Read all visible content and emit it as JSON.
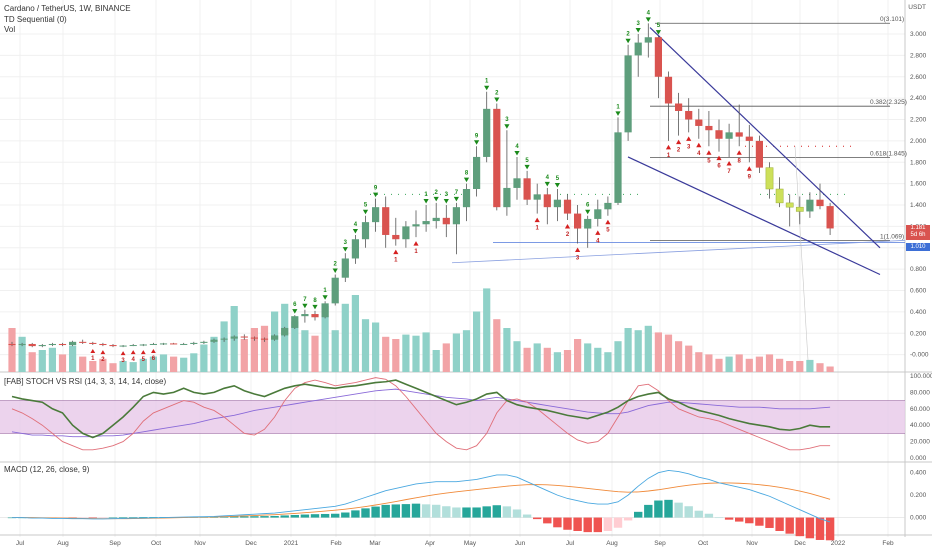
{
  "header": {
    "symbol_line": "Cardano / TetherUS, 1W, BINANCE",
    "indicator1": "TD Sequential (0)",
    "indicator2": "Vol",
    "currency": "USDT"
  },
  "panels": {
    "stoch_label": "[FAB] STOCH VS RSI (14, 3, 3, 14, 14, close)",
    "macd_label": "MACD (12, 26, close, 9)"
  },
  "price_badges": {
    "last": "1.181",
    "countdown": "5d 6h",
    "support": "1.010"
  },
  "colors": {
    "up": "#5e9e7c",
    "down": "#d9534f",
    "yellow": "#cde05a",
    "wedge": "#3a3a9a",
    "badge_last": "#d9534f",
    "badge_support": "#3d6fd6",
    "stoch_fill": "#e7c8e9",
    "rsi_line": "#8a6ad8",
    "stoch_k": "#4a7a3a",
    "stoch_d": "#e0707a",
    "macd_line": "#4aa8e0",
    "signal_line": "#f08a3a",
    "buy_arrow": "#1a8a1a",
    "sell_arrow": "#d62020"
  },
  "chart_data": {
    "type": "candlestick",
    "title": "Cardano / TetherUS, 1W, BINANCE",
    "x_ticks": [
      "Jul",
      "Aug",
      "Sep",
      "Oct",
      "Nov",
      "Dec",
      "2021",
      "Feb",
      "Mar",
      "Apr",
      "May",
      "Jun",
      "Jul",
      "Aug",
      "Sep",
      "Oct",
      "Nov",
      "Dec",
      "2022",
      "Feb"
    ],
    "price_axis": {
      "ticks": [
        "3.000",
        "2.800",
        "2.600",
        "2.400",
        "2.200",
        "2.000",
        "1.800",
        "1.600",
        "1.400",
        "1.200",
        "1.000",
        "0.800",
        "0.600",
        "0.400",
        "0.200",
        "-0.000"
      ],
      "range": [
        -0.05,
        3.15
      ],
      "unit": "USDT"
    },
    "candles": [
      {
        "o": 0.1,
        "h": 0.12,
        "l": 0.08,
        "c": 0.09
      },
      {
        "o": 0.09,
        "h": 0.11,
        "l": 0.08,
        "c": 0.1
      },
      {
        "o": 0.1,
        "h": 0.11,
        "l": 0.07,
        "c": 0.08
      },
      {
        "o": 0.08,
        "h": 0.1,
        "l": 0.07,
        "c": 0.09
      },
      {
        "o": 0.09,
        "h": 0.11,
        "l": 0.08,
        "c": 0.1
      },
      {
        "o": 0.1,
        "h": 0.11,
        "l": 0.08,
        "c": 0.09
      },
      {
        "o": 0.09,
        "h": 0.13,
        "l": 0.08,
        "c": 0.12
      },
      {
        "o": 0.12,
        "h": 0.14,
        "l": 0.1,
        "c": 0.11
      },
      {
        "o": 0.11,
        "h": 0.12,
        "l": 0.09,
        "c": 0.1
      },
      {
        "o": 0.1,
        "h": 0.11,
        "l": 0.08,
        "c": 0.09
      },
      {
        "o": 0.09,
        "h": 0.1,
        "l": 0.07,
        "c": 0.08
      },
      {
        "o": 0.08,
        "h": 0.09,
        "l": 0.07,
        "c": 0.085
      },
      {
        "o": 0.085,
        "h": 0.1,
        "l": 0.08,
        "c": 0.09
      },
      {
        "o": 0.09,
        "h": 0.1,
        "l": 0.08,
        "c": 0.095
      },
      {
        "o": 0.095,
        "h": 0.11,
        "l": 0.09,
        "c": 0.1
      },
      {
        "o": 0.1,
        "h": 0.11,
        "l": 0.09,
        "c": 0.105
      },
      {
        "o": 0.105,
        "h": 0.11,
        "l": 0.095,
        "c": 0.1
      },
      {
        "o": 0.1,
        "h": 0.11,
        "l": 0.09,
        "c": 0.1
      },
      {
        "o": 0.1,
        "h": 0.12,
        "l": 0.09,
        "c": 0.11
      },
      {
        "o": 0.11,
        "h": 0.13,
        "l": 0.1,
        "c": 0.12
      },
      {
        "o": 0.12,
        "h": 0.15,
        "l": 0.11,
        "c": 0.14
      },
      {
        "o": 0.14,
        "h": 0.16,
        "l": 0.12,
        "c": 0.15
      },
      {
        "o": 0.15,
        "h": 0.18,
        "l": 0.13,
        "c": 0.17
      },
      {
        "o": 0.17,
        "h": 0.19,
        "l": 0.14,
        "c": 0.16
      },
      {
        "o": 0.16,
        "h": 0.17,
        "l": 0.13,
        "c": 0.15
      },
      {
        "o": 0.15,
        "h": 0.16,
        "l": 0.12,
        "c": 0.14
      },
      {
        "o": 0.14,
        "h": 0.19,
        "l": 0.13,
        "c": 0.18
      },
      {
        "o": 0.18,
        "h": 0.26,
        "l": 0.17,
        "c": 0.25
      },
      {
        "o": 0.25,
        "h": 0.37,
        "l": 0.24,
        "c": 0.36
      },
      {
        "o": 0.36,
        "h": 0.42,
        "l": 0.3,
        "c": 0.38
      },
      {
        "o": 0.38,
        "h": 0.41,
        "l": 0.32,
        "c": 0.35
      },
      {
        "o": 0.35,
        "h": 0.5,
        "l": 0.34,
        "c": 0.48
      },
      {
        "o": 0.48,
        "h": 0.75,
        "l": 0.46,
        "c": 0.72
      },
      {
        "o": 0.72,
        "h": 0.95,
        "l": 0.68,
        "c": 0.9
      },
      {
        "o": 0.9,
        "h": 1.12,
        "l": 0.85,
        "c": 1.08
      },
      {
        "o": 1.08,
        "h": 1.3,
        "l": 1.0,
        "c": 1.24
      },
      {
        "o": 1.24,
        "h": 1.46,
        "l": 1.15,
        "c": 1.38
      },
      {
        "o": 1.38,
        "h": 1.48,
        "l": 1.0,
        "c": 1.12
      },
      {
        "o": 1.12,
        "h": 1.28,
        "l": 1.02,
        "c": 1.08
      },
      {
        "o": 1.08,
        "h": 1.25,
        "l": 1.0,
        "c": 1.2
      },
      {
        "o": 1.2,
        "h": 1.35,
        "l": 1.1,
        "c": 1.22
      },
      {
        "o": 1.22,
        "h": 1.4,
        "l": 1.15,
        "c": 1.25
      },
      {
        "o": 1.25,
        "h": 1.42,
        "l": 1.18,
        "c": 1.28
      },
      {
        "o": 1.28,
        "h": 1.4,
        "l": 1.1,
        "c": 1.22
      },
      {
        "o": 1.22,
        "h": 1.42,
        "l": 0.94,
        "c": 1.38
      },
      {
        "o": 1.38,
        "h": 1.6,
        "l": 1.25,
        "c": 1.55
      },
      {
        "o": 1.55,
        "h": 1.95,
        "l": 1.48,
        "c": 1.85
      },
      {
        "o": 1.85,
        "h": 2.46,
        "l": 1.8,
        "c": 2.3
      },
      {
        "o": 2.3,
        "h": 2.35,
        "l": 1.35,
        "c": 1.38
      },
      {
        "o": 1.38,
        "h": 2.1,
        "l": 1.3,
        "c": 1.56
      },
      {
        "o": 1.56,
        "h": 1.85,
        "l": 1.45,
        "c": 1.65
      },
      {
        "o": 1.65,
        "h": 1.72,
        "l": 1.4,
        "c": 1.45
      },
      {
        "o": 1.45,
        "h": 1.6,
        "l": 1.32,
        "c": 1.5
      },
      {
        "o": 1.5,
        "h": 1.56,
        "l": 1.22,
        "c": 1.38
      },
      {
        "o": 1.38,
        "h": 1.55,
        "l": 1.25,
        "c": 1.45
      },
      {
        "o": 1.45,
        "h": 1.5,
        "l": 1.26,
        "c": 1.32
      },
      {
        "o": 1.32,
        "h": 1.4,
        "l": 1.04,
        "c": 1.18
      },
      {
        "o": 1.18,
        "h": 1.3,
        "l": 1.0,
        "c": 1.27
      },
      {
        "o": 1.27,
        "h": 1.45,
        "l": 1.2,
        "c": 1.36
      },
      {
        "o": 1.36,
        "h": 1.48,
        "l": 1.3,
        "c": 1.42
      },
      {
        "o": 1.42,
        "h": 2.22,
        "l": 1.4,
        "c": 2.08
      },
      {
        "o": 2.08,
        "h": 2.9,
        "l": 2.0,
        "c": 2.8
      },
      {
        "o": 2.8,
        "h": 3.0,
        "l": 2.6,
        "c": 2.92
      },
      {
        "o": 2.92,
        "h": 3.1,
        "l": 2.78,
        "c": 2.97
      },
      {
        "o": 2.97,
        "h": 2.98,
        "l": 2.4,
        "c": 2.6
      },
      {
        "o": 2.6,
        "h": 2.65,
        "l": 2.0,
        "c": 2.35
      },
      {
        "o": 2.35,
        "h": 2.45,
        "l": 2.05,
        "c": 2.28
      },
      {
        "o": 2.28,
        "h": 2.4,
        "l": 2.08,
        "c": 2.2
      },
      {
        "o": 2.2,
        "h": 2.3,
        "l": 2.02,
        "c": 2.14
      },
      {
        "o": 2.14,
        "h": 2.28,
        "l": 1.95,
        "c": 2.1
      },
      {
        "o": 2.1,
        "h": 2.2,
        "l": 1.9,
        "c": 2.02
      },
      {
        "o": 2.02,
        "h": 2.16,
        "l": 1.85,
        "c": 2.08
      },
      {
        "o": 2.08,
        "h": 2.34,
        "l": 1.95,
        "c": 2.04
      },
      {
        "o": 2.04,
        "h": 2.15,
        "l": 1.8,
        "c": 2.0
      },
      {
        "o": 2.0,
        "h": 2.05,
        "l": 1.7,
        "c": 1.75
      },
      {
        "o": 1.75,
        "h": 1.8,
        "l": 1.46,
        "c": 1.55
      },
      {
        "o": 1.55,
        "h": 1.66,
        "l": 1.38,
        "c": 1.42
      },
      {
        "o": 1.42,
        "h": 1.5,
        "l": 1.2,
        "c": 1.38
      },
      {
        "o": 1.38,
        "h": 1.48,
        "l": 1.22,
        "c": 1.34
      },
      {
        "o": 1.34,
        "h": 1.52,
        "l": 1.28,
        "c": 1.45
      },
      {
        "o": 1.45,
        "h": 1.6,
        "l": 1.36,
        "c": 1.39
      },
      {
        "o": 1.39,
        "h": 1.42,
        "l": 1.12,
        "c": 1.181
      }
    ],
    "yellow_candles": [
      75,
      76,
      77,
      78
    ],
    "volume": [
      0.4,
      0.32,
      0.18,
      0.2,
      0.22,
      0.16,
      0.24,
      0.14,
      0.1,
      0.12,
      0.08,
      0.1,
      0.09,
      0.12,
      0.14,
      0.16,
      0.14,
      0.13,
      0.17,
      0.25,
      0.32,
      0.46,
      0.6,
      0.3,
      0.4,
      0.42,
      0.55,
      0.62,
      0.46,
      0.38,
      0.33,
      0.6,
      0.38,
      0.62,
      0.7,
      0.48,
      0.45,
      0.32,
      0.3,
      0.34,
      0.33,
      0.36,
      0.2,
      0.26,
      0.35,
      0.38,
      0.55,
      0.76,
      0.48,
      0.4,
      0.28,
      0.22,
      0.26,
      0.22,
      0.18,
      0.2,
      0.3,
      0.26,
      0.22,
      0.18,
      0.28,
      0.4,
      0.38,
      0.42,
      0.36,
      0.34,
      0.28,
      0.24,
      0.18,
      0.16,
      0.12,
      0.14,
      0.16,
      0.12,
      0.14,
      0.16,
      0.12,
      0.1,
      0.1,
      0.11,
      0.08,
      0.05
    ],
    "td_labels": {
      "green_counts": [
        [
          31,
          "1"
        ],
        [
          32,
          "2"
        ],
        [
          33,
          "3"
        ],
        [
          34,
          "4"
        ],
        [
          35,
          "5"
        ],
        [
          44,
          "7"
        ],
        [
          45,
          "8"
        ],
        [
          46,
          "9"
        ],
        [
          47,
          "1"
        ],
        [
          48,
          "2"
        ],
        [
          49,
          "3"
        ],
        [
          50,
          "4"
        ],
        [
          51,
          "5"
        ],
        [
          41,
          "1"
        ],
        [
          42,
          "2"
        ],
        [
          43,
          "3"
        ],
        [
          53,
          "4"
        ],
        [
          54,
          "5"
        ],
        [
          57,
          "6"
        ],
        [
          60,
          "1"
        ],
        [
          61,
          "2"
        ],
        [
          62,
          "3"
        ],
        [
          63,
          "4"
        ],
        [
          64,
          "5"
        ],
        [
          28,
          "6"
        ],
        [
          29,
          "7"
        ],
        [
          30,
          "8"
        ],
        [
          36,
          "9"
        ]
      ],
      "red_counts": [
        [
          65,
          "1"
        ],
        [
          66,
          "2"
        ],
        [
          67,
          "3"
        ],
        [
          68,
          "4"
        ],
        [
          69,
          "5"
        ],
        [
          70,
          "6"
        ],
        [
          71,
          "7"
        ],
        [
          72,
          "8"
        ],
        [
          73,
          "9"
        ],
        [
          52,
          "1"
        ],
        [
          55,
          "2"
        ],
        [
          56,
          "3"
        ],
        [
          58,
          "4"
        ],
        [
          59,
          "5"
        ],
        [
          38,
          "1"
        ],
        [
          40,
          "1"
        ]
      ],
      "summary": "TD Sequential buy/sell counts 1–9"
    },
    "fib_levels": [
      {
        "label": "0(3.101)",
        "value": 3.101
      },
      {
        "label": "0.382(2.325)",
        "value": 2.325
      },
      {
        "label": "0.618(1.845)",
        "value": 1.845
      },
      {
        "label": "1(1.069)",
        "value": 1.069
      }
    ],
    "stoch_axis": {
      "ticks": [
        "100.000",
        "80.000",
        "60.000",
        "40.000",
        "20.000",
        "0.000"
      ],
      "range": [
        0,
        100
      ],
      "band": [
        30,
        70
      ]
    },
    "stoch_k": [
      75,
      72,
      70,
      68,
      60,
      55,
      40,
      30,
      25,
      30,
      40,
      50,
      62,
      75,
      80,
      78,
      80,
      85,
      80,
      78,
      80,
      85,
      88,
      82,
      78,
      75,
      80,
      85,
      88,
      90,
      88,
      86,
      85,
      87,
      88,
      90,
      92,
      93,
      95,
      90,
      85,
      80,
      75,
      70,
      65,
      68,
      72,
      78,
      80,
      70,
      65,
      62,
      60,
      58,
      55,
      52,
      50,
      48,
      52,
      56,
      62,
      70,
      75,
      78,
      80,
      72,
      68,
      62,
      58,
      55,
      52,
      48,
      45,
      42,
      40,
      38,
      35,
      34,
      36,
      40,
      38,
      38
    ],
    "stoch_d": [
      60,
      55,
      48,
      40,
      30,
      20,
      15,
      10,
      10,
      12,
      15,
      20,
      30,
      45,
      55,
      60,
      65,
      70,
      68,
      62,
      58,
      50,
      40,
      30,
      28,
      35,
      50,
      70,
      85,
      92,
      95,
      92,
      88,
      90,
      92,
      95,
      98,
      96,
      88,
      75,
      60,
      45,
      30,
      20,
      12,
      10,
      15,
      30,
      55,
      70,
      72,
      68,
      60,
      50,
      40,
      30,
      22,
      18,
      20,
      30,
      50,
      70,
      88,
      90,
      82,
      70,
      60,
      55,
      50,
      48,
      45,
      40,
      35,
      30,
      25,
      20,
      15,
      10,
      10,
      12,
      15,
      15
    ],
    "rsi_line": [
      32,
      30,
      28,
      28,
      27,
      27,
      26,
      26,
      26,
      27,
      27,
      28,
      30,
      32,
      34,
      36,
      38,
      40,
      42,
      45,
      48,
      50,
      52,
      55,
      58,
      60,
      62,
      64,
      66,
      68,
      70,
      72,
      74,
      76,
      78,
      80,
      82,
      83,
      84,
      82,
      80,
      78,
      76,
      74,
      73,
      72,
      70,
      72,
      74,
      72,
      70,
      68,
      66,
      64,
      62,
      60,
      58,
      56,
      55,
      54,
      54,
      56,
      60,
      64,
      66,
      68,
      68,
      67,
      66,
      65,
      64,
      63,
      62,
      62,
      62,
      61,
      60,
      60,
      60,
      60,
      61,
      62
    ],
    "macd_axis": {
      "ticks": [
        "0.400",
        "0.200",
        "0.000"
      ],
      "range": [
        -0.12,
        0.46
      ]
    },
    "macd_line": [
      0.0,
      0.0,
      -0.005,
      -0.005,
      -0.008,
      -0.008,
      -0.01,
      -0.01,
      -0.012,
      -0.012,
      -0.01,
      -0.008,
      -0.006,
      -0.004,
      -0.002,
      0.0,
      0.002,
      0.004,
      0.006,
      0.008,
      0.01,
      0.015,
      0.02,
      0.025,
      0.03,
      0.035,
      0.04,
      0.05,
      0.06,
      0.07,
      0.08,
      0.09,
      0.1,
      0.12,
      0.15,
      0.18,
      0.21,
      0.24,
      0.26,
      0.28,
      0.3,
      0.31,
      0.32,
      0.32,
      0.32,
      0.33,
      0.34,
      0.36,
      0.38,
      0.38,
      0.36,
      0.32,
      0.28,
      0.24,
      0.2,
      0.17,
      0.15,
      0.13,
      0.12,
      0.12,
      0.14,
      0.2,
      0.28,
      0.35,
      0.4,
      0.42,
      0.41,
      0.39,
      0.36,
      0.34,
      0.31,
      0.29,
      0.27,
      0.25,
      0.22,
      0.19,
      0.15,
      0.11,
      0.07,
      0.03,
      -0.01,
      -0.04
    ],
    "signal_line": [
      0.0,
      0.0,
      0.0,
      -0.002,
      -0.004,
      -0.005,
      -0.006,
      -0.008,
      -0.009,
      -0.01,
      -0.01,
      -0.01,
      -0.009,
      -0.008,
      -0.006,
      -0.004,
      -0.002,
      0.0,
      0.002,
      0.004,
      0.006,
      0.008,
      0.011,
      0.014,
      0.018,
      0.022,
      0.026,
      0.031,
      0.037,
      0.043,
      0.05,
      0.058,
      0.066,
      0.075,
      0.086,
      0.098,
      0.112,
      0.127,
      0.143,
      0.16,
      0.176,
      0.192,
      0.206,
      0.219,
      0.23,
      0.24,
      0.25,
      0.26,
      0.27,
      0.28,
      0.288,
      0.293,
      0.294,
      0.292,
      0.287,
      0.279,
      0.27,
      0.26,
      0.25,
      0.24,
      0.231,
      0.226,
      0.229,
      0.237,
      0.248,
      0.262,
      0.277,
      0.289,
      0.299,
      0.306,
      0.309,
      0.309,
      0.306,
      0.301,
      0.293,
      0.283,
      0.27,
      0.254,
      0.236,
      0.215,
      0.19,
      0.163
    ],
    "macd_hist": [
      0.0,
      0.0,
      -0.005,
      -0.003,
      -0.004,
      -0.003,
      -0.004,
      -0.002,
      -0.003,
      -0.002,
      0.0,
      0.002,
      0.003,
      0.004,
      0.004,
      0.004,
      0.004,
      0.004,
      0.004,
      0.004,
      0.004,
      0.007,
      0.009,
      0.011,
      0.012,
      0.013,
      0.014,
      0.019,
      0.023,
      0.027,
      0.03,
      0.032,
      0.034,
      0.045,
      0.064,
      0.082,
      0.098,
      0.113,
      0.117,
      0.12,
      0.124,
      0.118,
      0.114,
      0.101,
      0.09,
      0.09,
      0.09,
      0.1,
      0.11,
      0.1,
      0.072,
      0.027,
      -0.014,
      -0.052,
      -0.087,
      -0.109,
      -0.12,
      -0.13,
      -0.13,
      -0.12,
      -0.091,
      -0.026,
      0.051,
      0.113,
      0.152,
      0.158,
      0.133,
      0.101,
      0.061,
      0.034,
      0.001,
      -0.019,
      -0.036,
      -0.051,
      -0.073,
      -0.093,
      -0.12,
      -0.144,
      -0.166,
      -0.185,
      -0.2,
      -0.203
    ]
  }
}
